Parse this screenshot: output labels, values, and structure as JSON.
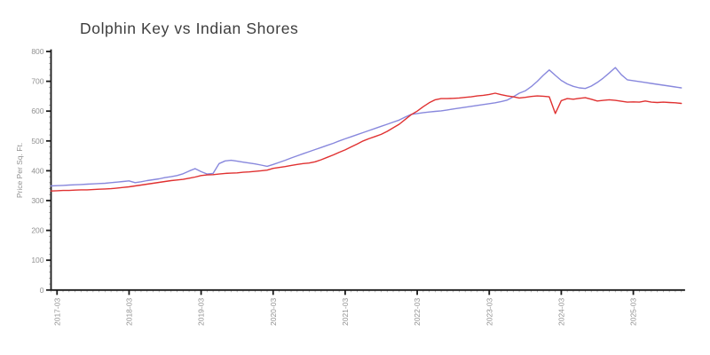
{
  "page": {
    "background": "#ffffff"
  },
  "chart_data": {
    "type": "line",
    "title": "Dolphin Key vs Indian Shores",
    "xlabel": "",
    "ylabel": "Price Per Sq. Ft.",
    "ylim": [
      0,
      800
    ],
    "y_ticks": [
      0,
      100,
      200,
      300,
      400,
      500,
      600,
      700,
      800
    ],
    "y_minor_step": 20,
    "grid": "off",
    "legend": "none",
    "x_major_tick_suffix": "-03",
    "x_major_tick_labels": [
      "2017-03",
      "2018-03",
      "2019-03",
      "2020-03",
      "2021-03",
      "2022-03",
      "2023-03",
      "2024-03",
      "2025-03"
    ],
    "colors": {
      "axis": "#1a1a1a",
      "minor_tick": "#aaaaaa",
      "tick_label": "#919191",
      "title": "#3d3d3d"
    },
    "x": [
      "2017-02",
      "2017-03",
      "2017-04",
      "2017-05",
      "2017-06",
      "2017-07",
      "2017-08",
      "2017-09",
      "2017-10",
      "2017-11",
      "2017-12",
      "2018-01",
      "2018-02",
      "2018-03",
      "2018-04",
      "2018-05",
      "2018-06",
      "2018-07",
      "2018-08",
      "2018-09",
      "2018-10",
      "2018-11",
      "2018-12",
      "2019-01",
      "2019-02",
      "2019-03",
      "2019-04",
      "2019-05",
      "2019-06",
      "2019-07",
      "2019-08",
      "2019-09",
      "2019-10",
      "2019-11",
      "2019-12",
      "2020-01",
      "2020-02",
      "2020-03",
      "2020-04",
      "2020-05",
      "2020-06",
      "2020-07",
      "2020-08",
      "2020-09",
      "2020-10",
      "2020-11",
      "2020-12",
      "2021-01",
      "2021-02",
      "2021-03",
      "2021-04",
      "2021-05",
      "2021-06",
      "2021-07",
      "2021-08",
      "2021-09",
      "2021-10",
      "2021-11",
      "2021-12",
      "2022-01",
      "2022-02",
      "2022-03",
      "2022-04",
      "2022-05",
      "2022-06",
      "2022-07",
      "2022-08",
      "2022-09",
      "2022-10",
      "2022-11",
      "2022-12",
      "2023-01",
      "2023-02",
      "2023-03",
      "2023-04",
      "2023-05",
      "2023-06",
      "2023-07",
      "2023-08",
      "2023-09",
      "2023-10",
      "2023-11",
      "2023-12",
      "2024-01",
      "2024-02",
      "2024-03",
      "2024-04",
      "2024-05",
      "2024-06",
      "2024-07",
      "2024-08",
      "2024-09",
      "2024-10",
      "2024-11",
      "2024-12",
      "2025-01",
      "2025-02",
      "2025-03",
      "2025-04",
      "2025-05",
      "2025-06",
      "2025-07",
      "2025-08",
      "2025-09",
      "2025-10",
      "2025-11"
    ],
    "series": [
      {
        "name": "Dolphin Key",
        "color": "#8888dd",
        "values": [
          349,
          350,
          351,
          352,
          353,
          354,
          355,
          356,
          357,
          358,
          360,
          362,
          364,
          366,
          360,
          363,
          367,
          370,
          373,
          377,
          380,
          384,
          390,
          399,
          407,
          397,
          389,
          391,
          424,
          433,
          435,
          432,
          429,
          426,
          423,
          419,
          415,
          421,
          428,
          435,
          443,
          450,
          457,
          464,
          471,
          478,
          485,
          492,
          500,
          507,
          514,
          521,
          528,
          535,
          542,
          549,
          556,
          563,
          570,
          580,
          589,
          592,
          595,
          597,
          599,
          601,
          604,
          607,
          610,
          613,
          616,
          619,
          622,
          625,
          628,
          632,
          637,
          648,
          660,
          668,
          682,
          700,
          720,
          738,
          720,
          703,
          691,
          683,
          678,
          676,
          684,
          696,
          711,
          728,
          746,
          722,
          705,
          702,
          699,
          696,
          693,
          690,
          687,
          684,
          681,
          678
        ]
      },
      {
        "name": "Indian Shores",
        "color": "#e03131",
        "values": [
          332,
          333,
          334,
          334,
          335,
          336,
          336,
          337,
          338,
          339,
          340,
          342,
          344,
          346,
          349,
          352,
          355,
          358,
          361,
          364,
          367,
          369,
          371,
          375,
          379,
          384,
          386,
          387,
          389,
          391,
          392,
          393,
          395,
          396,
          398,
          400,
          402,
          408,
          411,
          414,
          418,
          421,
          424,
          426,
          430,
          437,
          445,
          453,
          462,
          470,
          480,
          490,
          500,
          508,
          515,
          522,
          532,
          544,
          556,
          572,
          588,
          600,
          615,
          628,
          638,
          642,
          642,
          643,
          644,
          646,
          648,
          651,
          653,
          656,
          660,
          655,
          651,
          648,
          644,
          646,
          649,
          651,
          650,
          648,
          592,
          635,
          642,
          640,
          643,
          645,
          640,
          634,
          636,
          638,
          636,
          633,
          630,
          631,
          630,
          634,
          630,
          629,
          630,
          629,
          628,
          626
        ]
      }
    ]
  }
}
